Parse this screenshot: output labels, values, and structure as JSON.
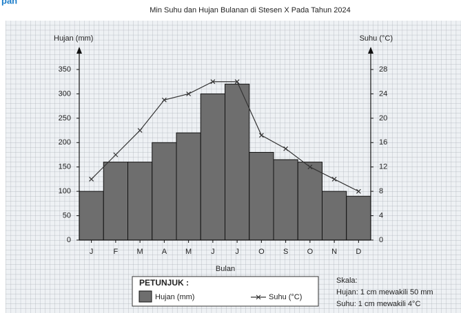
{
  "header": "pan",
  "chart_data": {
    "type": "combo",
    "title": "Min Suhu dan Hujan Bulanan di Stesen X Pada Tahun 2024",
    "xlabel": "Bulan",
    "ylabel": "Hujan (mm)",
    "y2label": "Suhu (°C)",
    "categories": [
      "J",
      "F",
      "M",
      "A",
      "M",
      "J",
      "J",
      "O",
      "S",
      "O",
      "N",
      "D"
    ],
    "series": [
      {
        "name": "Hujan (mm)",
        "type": "bar",
        "color": "#6e6e6e",
        "values": [
          100,
          160,
          160,
          200,
          220,
          300,
          320,
          180,
          165,
          160,
          100,
          90
        ]
      },
      {
        "name": "Suhu (°C)",
        "type": "line",
        "axis": "y2",
        "color": "#333333",
        "values": [
          10,
          14,
          18,
          23,
          24,
          26,
          26,
          17.2,
          15,
          12,
          10,
          8
        ]
      }
    ],
    "ylim": [
      0,
      350
    ],
    "yticks": [
      0,
      50,
      100,
      150,
      200,
      250,
      300,
      350
    ],
    "y2lim": [
      0,
      28
    ],
    "y2ticks": [
      0,
      4,
      8,
      12,
      16,
      20,
      24,
      28
    ],
    "grid": true,
    "legend_title": "PETUNJUK :",
    "notes": [
      "Skala:",
      "Hujan: 1 cm mewakili 50 mm",
      "Suhu: 1 cm mewakili 4°C"
    ]
  }
}
